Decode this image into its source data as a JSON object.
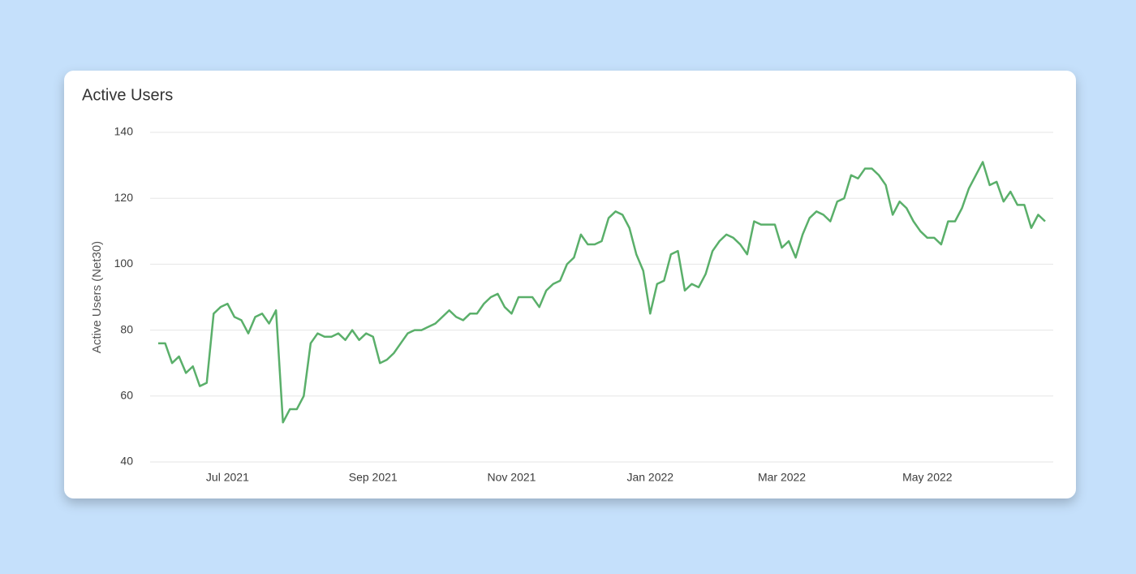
{
  "chart_data": {
    "type": "line",
    "title": "Active Users",
    "y_label": "Active Users (Net30)",
    "categories": [
      null,
      null,
      null,
      null,
      null,
      null,
      null,
      null,
      null,
      null,
      "Jul 2021",
      null,
      null,
      null,
      null,
      null,
      null,
      null,
      null,
      null,
      null,
      null,
      null,
      null,
      null,
      null,
      null,
      null,
      null,
      null,
      null,
      "Sep 2021",
      null,
      null,
      null,
      null,
      null,
      null,
      null,
      null,
      null,
      null,
      null,
      null,
      null,
      null,
      null,
      null,
      null,
      null,
      null,
      "Nov 2021",
      null,
      null,
      null,
      null,
      null,
      null,
      null,
      null,
      null,
      null,
      null,
      null,
      null,
      null,
      null,
      null,
      null,
      null,
      null,
      "Jan 2022",
      null,
      null,
      null,
      null,
      null,
      null,
      null,
      null,
      null,
      null,
      null,
      null,
      null,
      null,
      null,
      null,
      null,
      null,
      "Mar 2022",
      null,
      null,
      null,
      null,
      null,
      null,
      null,
      null,
      null,
      null,
      null,
      null,
      null,
      null,
      null,
      null,
      null,
      null,
      null,
      null,
      "May 2022",
      null,
      null,
      null,
      null,
      null,
      null,
      null,
      null,
      null,
      null,
      null,
      null,
      null,
      null,
      null,
      null,
      null
    ],
    "series": [
      {
        "name": "Active Users",
        "color": "#5aaf6a",
        "values": [
          76,
          76,
          70,
          72,
          67,
          69,
          63,
          64,
          85,
          87,
          88,
          84,
          83,
          79,
          84,
          85,
          82,
          86,
          52,
          56,
          56,
          60,
          76,
          79,
          78,
          78,
          79,
          77,
          80,
          77,
          79,
          78,
          70,
          71,
          73,
          76,
          79,
          80,
          80,
          81,
          82,
          84,
          86,
          84,
          83,
          85,
          85,
          88,
          90,
          91,
          87,
          85,
          90,
          90,
          90,
          87,
          92,
          94,
          95,
          100,
          102,
          109,
          106,
          106,
          107,
          114,
          116,
          115,
          111,
          103,
          98,
          85,
          94,
          95,
          103,
          104,
          92,
          94,
          93,
          97,
          104,
          107,
          109,
          108,
          106,
          103,
          113,
          112,
          112,
          112,
          105,
          107,
          102,
          109,
          114,
          116,
          115,
          113,
          119,
          120,
          127,
          126,
          129,
          129,
          127,
          124,
          115,
          119,
          117,
          113,
          110,
          108,
          108,
          106,
          113,
          113,
          117,
          123,
          127,
          131,
          124,
          125,
          119,
          122,
          118,
          118,
          111,
          115,
          113
        ]
      }
    ],
    "ylim": [
      40,
      140
    ],
    "yticks": [
      40,
      60,
      80,
      100,
      120,
      140
    ],
    "grid": true
  }
}
